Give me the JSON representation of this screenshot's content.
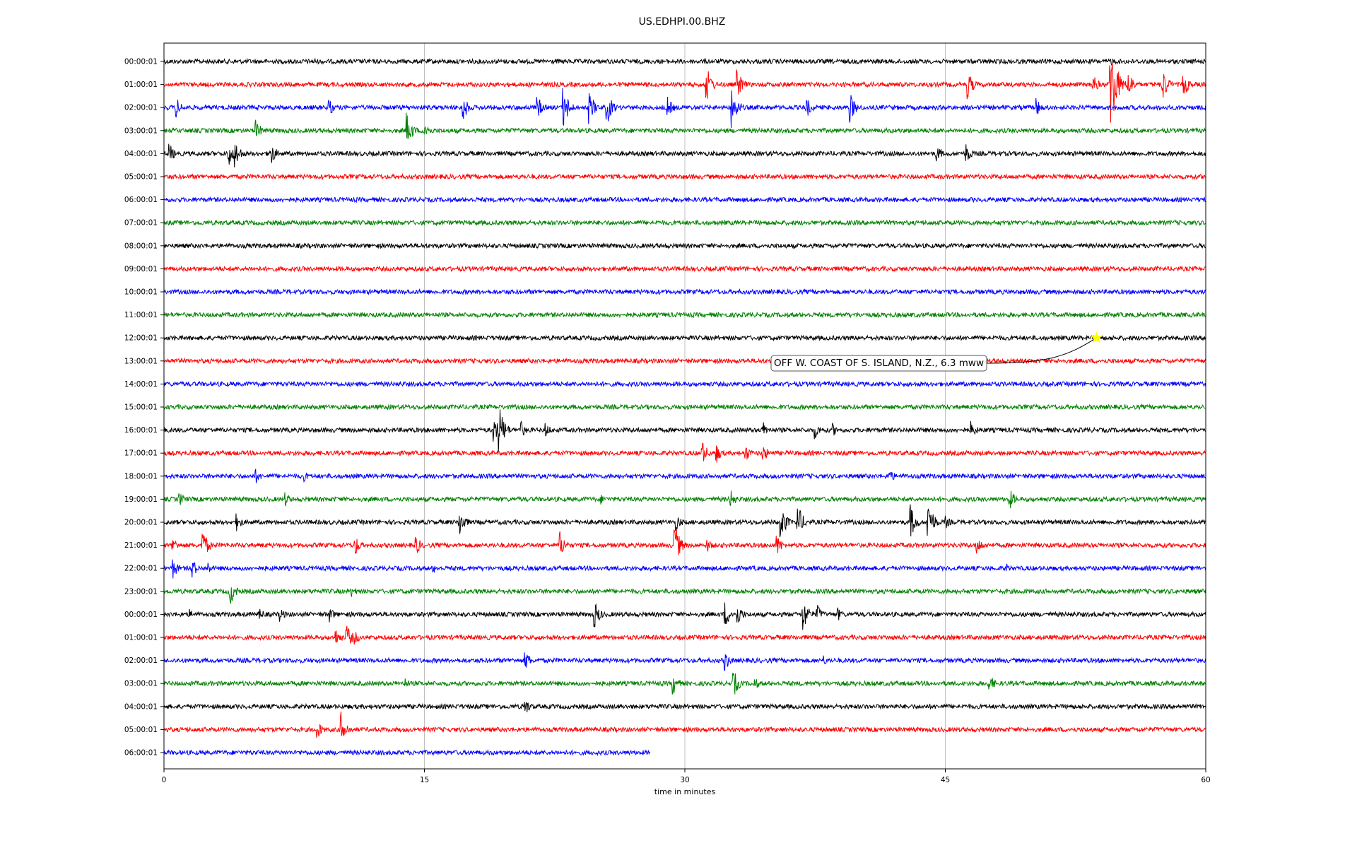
{
  "chart_data": {
    "type": "line",
    "title": "US.EDHPI.00.BHZ",
    "xlabel": "time in minutes",
    "ylabel": "",
    "xlim": [
      0,
      60
    ],
    "xticks": [
      0,
      15,
      30,
      45,
      60
    ],
    "grid": "vertical lines at x ticks",
    "trace_colors": [
      "#000000",
      "#ff0000",
      "#0000ff",
      "#008000"
    ],
    "rows": [
      {
        "label": "00:00:01",
        "end": 60,
        "bursts": [
          {
            "t": 8.6,
            "a": 0.25
          },
          {
            "t": 54.5,
            "a": 0.3
          }
        ]
      },
      {
        "label": "01:00:01",
        "end": 60,
        "bursts": [
          {
            "t": 31.2,
            "a": 1.2
          },
          {
            "t": 33.0,
            "a": 0.9
          },
          {
            "t": 46.3,
            "a": 0.8
          },
          {
            "t": 53.5,
            "a": 0.6
          },
          {
            "t": 54.5,
            "a": 3.3
          },
          {
            "t": 55.5,
            "a": 0.9
          },
          {
            "t": 57.5,
            "a": 1.0
          },
          {
            "t": 58.7,
            "a": 0.8
          }
        ]
      },
      {
        "label": "02:00:01",
        "end": 60,
        "bursts": [
          {
            "t": 0.7,
            "a": 0.6
          },
          {
            "t": 9.5,
            "a": 0.5
          },
          {
            "t": 17.2,
            "a": 0.8
          },
          {
            "t": 21.5,
            "a": 0.7
          },
          {
            "t": 23.0,
            "a": 1.2
          },
          {
            "t": 24.5,
            "a": 0.9
          },
          {
            "t": 25.5,
            "a": 1.0
          },
          {
            "t": 29.0,
            "a": 0.6
          },
          {
            "t": 32.7,
            "a": 1.2
          },
          {
            "t": 37.0,
            "a": 0.6
          },
          {
            "t": 39.5,
            "a": 0.9
          },
          {
            "t": 50.2,
            "a": 0.6
          }
        ]
      },
      {
        "label": "03:00:01",
        "end": 60,
        "bursts": [
          {
            "t": 5.3,
            "a": 0.6
          },
          {
            "t": 14.0,
            "a": 1.0
          },
          {
            "t": 15.0,
            "a": 0.6
          }
        ]
      },
      {
        "label": "04:00:01",
        "end": 60,
        "bursts": [
          {
            "t": 0.3,
            "a": 0.6
          },
          {
            "t": 3.7,
            "a": 0.8
          },
          {
            "t": 4.1,
            "a": 0.8
          },
          {
            "t": 6.1,
            "a": 0.8
          },
          {
            "t": 44.5,
            "a": 0.5
          },
          {
            "t": 46.2,
            "a": 0.6
          }
        ]
      },
      {
        "label": "05:00:01",
        "end": 60,
        "bursts": []
      },
      {
        "label": "06:00:01",
        "end": 60,
        "bursts": []
      },
      {
        "label": "07:00:01",
        "end": 60,
        "bursts": []
      },
      {
        "label": "08:00:01",
        "end": 60,
        "bursts": []
      },
      {
        "label": "09:00:01",
        "end": 60,
        "bursts": []
      },
      {
        "label": "10:00:01",
        "end": 60,
        "bursts": []
      },
      {
        "label": "11:00:01",
        "end": 60,
        "bursts": []
      },
      {
        "label": "12:00:01",
        "end": 60,
        "bursts": []
      },
      {
        "label": "13:00:01",
        "end": 60,
        "bursts": []
      },
      {
        "label": "14:00:01",
        "end": 60,
        "bursts": []
      },
      {
        "label": "15:00:01",
        "end": 60,
        "bursts": []
      },
      {
        "label": "16:00:01",
        "end": 60,
        "bursts": [
          {
            "t": 19.0,
            "a": 0.8
          },
          {
            "t": 19.3,
            "a": 1.4
          },
          {
            "t": 20.5,
            "a": 0.6
          },
          {
            "t": 22.0,
            "a": 0.4
          },
          {
            "t": 34.5,
            "a": 0.5
          },
          {
            "t": 37.5,
            "a": 0.5
          },
          {
            "t": 38.5,
            "a": 0.4
          },
          {
            "t": 46.5,
            "a": 0.5
          }
        ]
      },
      {
        "label": "17:00:01",
        "end": 60,
        "bursts": [
          {
            "t": 31.0,
            "a": 0.7
          },
          {
            "t": 31.8,
            "a": 0.6
          },
          {
            "t": 33.5,
            "a": 0.5
          },
          {
            "t": 34.5,
            "a": 0.5
          }
        ]
      },
      {
        "label": "18:00:01",
        "end": 60,
        "bursts": [
          {
            "t": 5.3,
            "a": 0.4
          },
          {
            "t": 8.1,
            "a": 0.3
          },
          {
            "t": 41.8,
            "a": 0.4
          }
        ]
      },
      {
        "label": "19:00:01",
        "end": 60,
        "bursts": [
          {
            "t": 0.9,
            "a": 0.4
          },
          {
            "t": 7.0,
            "a": 0.4
          },
          {
            "t": 25.2,
            "a": 0.3
          },
          {
            "t": 32.6,
            "a": 0.6
          },
          {
            "t": 48.7,
            "a": 0.6
          }
        ]
      },
      {
        "label": "20:00:01",
        "end": 60,
        "bursts": [
          {
            "t": 4.2,
            "a": 0.5
          },
          {
            "t": 17.0,
            "a": 0.9
          },
          {
            "t": 29.5,
            "a": 0.5
          },
          {
            "t": 35.5,
            "a": 1.1
          },
          {
            "t": 36.5,
            "a": 1.0
          },
          {
            "t": 43.0,
            "a": 1.0
          },
          {
            "t": 44.0,
            "a": 1.3
          },
          {
            "t": 45.0,
            "a": 0.4
          }
        ]
      },
      {
        "label": "21:00:01",
        "end": 60,
        "bursts": [
          {
            "t": 0.5,
            "a": 0.5
          },
          {
            "t": 2.2,
            "a": 1.0
          },
          {
            "t": 11.0,
            "a": 0.6
          },
          {
            "t": 14.5,
            "a": 0.6
          },
          {
            "t": 22.8,
            "a": 0.8
          },
          {
            "t": 29.4,
            "a": 1.3
          },
          {
            "t": 31.3,
            "a": 0.4
          },
          {
            "t": 35.3,
            "a": 0.6
          },
          {
            "t": 46.8,
            "a": 0.6
          }
        ]
      },
      {
        "label": "22:00:01",
        "end": 60,
        "bursts": [
          {
            "t": 0.5,
            "a": 0.6
          },
          {
            "t": 1.6,
            "a": 0.6
          },
          {
            "t": 2.5,
            "a": 0.4
          },
          {
            "t": 15.5,
            "a": 0.3
          },
          {
            "t": 34.0,
            "a": 0.2
          },
          {
            "t": 48.5,
            "a": 0.3
          }
        ]
      },
      {
        "label": "23:00:01",
        "end": 60,
        "bursts": [
          {
            "t": 3.8,
            "a": 0.8
          },
          {
            "t": 10.8,
            "a": 0.4
          }
        ]
      },
      {
        "label": "00:00:01",
        "end": 60,
        "bursts": [
          {
            "t": 1.5,
            "a": 0.3
          },
          {
            "t": 5.5,
            "a": 0.4
          },
          {
            "t": 6.7,
            "a": 0.4
          },
          {
            "t": 9.5,
            "a": 0.5
          },
          {
            "t": 24.8,
            "a": 0.8
          },
          {
            "t": 32.3,
            "a": 0.8
          },
          {
            "t": 33.0,
            "a": 0.7
          },
          {
            "t": 36.8,
            "a": 1.0
          },
          {
            "t": 37.6,
            "a": 0.6
          },
          {
            "t": 38.8,
            "a": 0.4
          }
        ]
      },
      {
        "label": "01:00:01",
        "end": 60,
        "bursts": [
          {
            "t": 9.9,
            "a": 0.5
          },
          {
            "t": 10.5,
            "a": 0.8
          },
          {
            "t": 11.0,
            "a": 0.4
          }
        ]
      },
      {
        "label": "02:00:01",
        "end": 60,
        "bursts": [
          {
            "t": 20.8,
            "a": 0.6
          },
          {
            "t": 32.3,
            "a": 0.6
          },
          {
            "t": 38.0,
            "a": 0.3
          }
        ]
      },
      {
        "label": "03:00:01",
        "end": 60,
        "bursts": [
          {
            "t": 13.9,
            "a": 0.3
          },
          {
            "t": 29.3,
            "a": 0.7
          },
          {
            "t": 32.8,
            "a": 0.8
          },
          {
            "t": 34.0,
            "a": 0.4
          },
          {
            "t": 47.5,
            "a": 0.6
          }
        ]
      },
      {
        "label": "04:00:01",
        "end": 60,
        "bursts": [
          {
            "t": 20.8,
            "a": 0.5
          }
        ]
      },
      {
        "label": "05:00:01",
        "end": 60,
        "bursts": [
          {
            "t": 8.8,
            "a": 0.6
          },
          {
            "t": 10.2,
            "a": 1.0
          }
        ]
      },
      {
        "label": "06:00:01",
        "end": 28,
        "bursts": []
      }
    ],
    "event_marker": {
      "row": 12,
      "t": 53.7,
      "color": "#ffff00"
    },
    "annotation": {
      "text": "OFF W. COAST OF S. ISLAND, N.Z., 6.3 mww"
    }
  }
}
